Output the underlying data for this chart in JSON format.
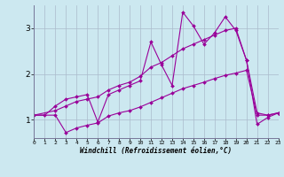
{
  "xlabel": "Windchill (Refroidissement éolien,°C)",
  "bg_color": "#cce8f0",
  "grid_color": "#aabbcc",
  "line_color": "#990099",
  "x_ticks": [
    0,
    1,
    2,
    3,
    4,
    5,
    6,
    7,
    8,
    9,
    10,
    11,
    12,
    13,
    14,
    15,
    16,
    17,
    18,
    19,
    20,
    21,
    22,
    23
  ],
  "x_tick_labels": [
    "0",
    "1",
    "2",
    "3",
    "4",
    "5",
    "6",
    "7",
    "8",
    "9",
    "10",
    "11",
    "12",
    "13",
    "14",
    "15",
    "16",
    "17",
    "18",
    "19",
    "20",
    "21",
    "22",
    "23"
  ],
  "ylim": [
    0.6,
    3.5
  ],
  "xlim": [
    0,
    23
  ],
  "yticks": [
    1,
    2,
    3
  ],
  "series1_x": [
    0,
    1,
    2,
    3,
    4,
    5,
    6,
    7,
    8,
    9,
    10,
    11,
    12,
    13,
    14,
    15,
    16,
    17,
    18,
    19,
    20,
    21,
    22,
    23
  ],
  "series1_y": [
    1.1,
    1.1,
    1.3,
    1.45,
    1.5,
    1.55,
    0.95,
    1.55,
    1.65,
    1.75,
    1.85,
    2.7,
    2.2,
    1.75,
    3.35,
    3.05,
    2.65,
    2.9,
    3.25,
    2.95,
    2.3,
    0.9,
    1.05,
    1.15
  ],
  "series2_x": [
    0,
    2,
    3,
    4,
    5,
    6,
    7,
    8,
    9,
    10,
    11,
    12,
    13,
    14,
    15,
    16,
    17,
    18,
    19,
    20,
    21,
    22,
    23
  ],
  "series2_y": [
    1.1,
    1.2,
    1.3,
    1.4,
    1.45,
    1.5,
    1.65,
    1.75,
    1.82,
    1.95,
    2.15,
    2.25,
    2.4,
    2.55,
    2.65,
    2.75,
    2.85,
    2.95,
    3.0,
    2.3,
    1.15,
    1.1,
    1.15
  ],
  "series3_x": [
    0,
    2,
    3,
    4,
    5,
    6,
    7,
    8,
    9,
    10,
    11,
    12,
    13,
    14,
    15,
    16,
    17,
    18,
    19,
    20,
    21,
    22,
    23
  ],
  "series3_y": [
    1.1,
    1.1,
    0.72,
    0.82,
    0.88,
    0.93,
    1.08,
    1.15,
    1.2,
    1.28,
    1.38,
    1.48,
    1.58,
    1.68,
    1.75,
    1.82,
    1.9,
    1.97,
    2.02,
    2.08,
    1.1,
    1.1,
    1.15
  ]
}
